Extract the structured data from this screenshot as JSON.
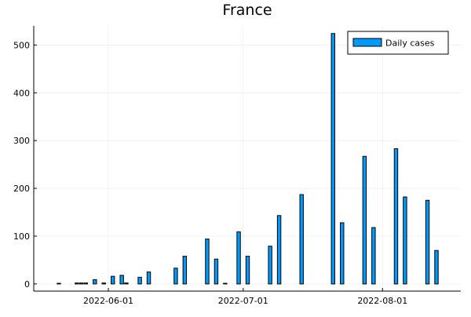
{
  "chart_data": {
    "type": "bar",
    "title": "France",
    "xlabel": "",
    "ylabel": "",
    "grid": true,
    "legend_position": "top-right",
    "x_axis": {
      "type": "date",
      "range": [
        "2022-05-21",
        "2022-08-13"
      ],
      "ticks": [
        "2022-06-01",
        "2022-07-01",
        "2022-08-01"
      ]
    },
    "y_axis": {
      "range": [
        -15,
        540
      ],
      "ticks": [
        0,
        100,
        200,
        300,
        400,
        500
      ]
    },
    "bar_color": "#009AFA",
    "series": [
      {
        "name": "Daily cases",
        "points": [
          {
            "x": "2022-05-21",
            "y": 1
          },
          {
            "x": "2022-05-25",
            "y": 2
          },
          {
            "x": "2022-05-26",
            "y": 2
          },
          {
            "x": "2022-05-27",
            "y": 2
          },
          {
            "x": "2022-05-29",
            "y": 9
          },
          {
            "x": "2022-05-31",
            "y": 2
          },
          {
            "x": "2022-06-02",
            "y": 16
          },
          {
            "x": "2022-06-04",
            "y": 18
          },
          {
            "x": "2022-06-05",
            "y": 2
          },
          {
            "x": "2022-06-08",
            "y": 14
          },
          {
            "x": "2022-06-10",
            "y": 25
          },
          {
            "x": "2022-06-16",
            "y": 33
          },
          {
            "x": "2022-06-18",
            "y": 58
          },
          {
            "x": "2022-06-23",
            "y": 94
          },
          {
            "x": "2022-06-25",
            "y": 52
          },
          {
            "x": "2022-06-27",
            "y": 1
          },
          {
            "x": "2022-06-30",
            "y": 109
          },
          {
            "x": "2022-07-02",
            "y": 58
          },
          {
            "x": "2022-07-07",
            "y": 79
          },
          {
            "x": "2022-07-09",
            "y": 143
          },
          {
            "x": "2022-07-14",
            "y": 187
          },
          {
            "x": "2022-07-21",
            "y": 524
          },
          {
            "x": "2022-07-23",
            "y": 128
          },
          {
            "x": "2022-07-28",
            "y": 267
          },
          {
            "x": "2022-07-30",
            "y": 118
          },
          {
            "x": "2022-08-04",
            "y": 283
          },
          {
            "x": "2022-08-06",
            "y": 182
          },
          {
            "x": "2022-08-11",
            "y": 175
          },
          {
            "x": "2022-08-13",
            "y": 70
          }
        ]
      }
    ]
  }
}
